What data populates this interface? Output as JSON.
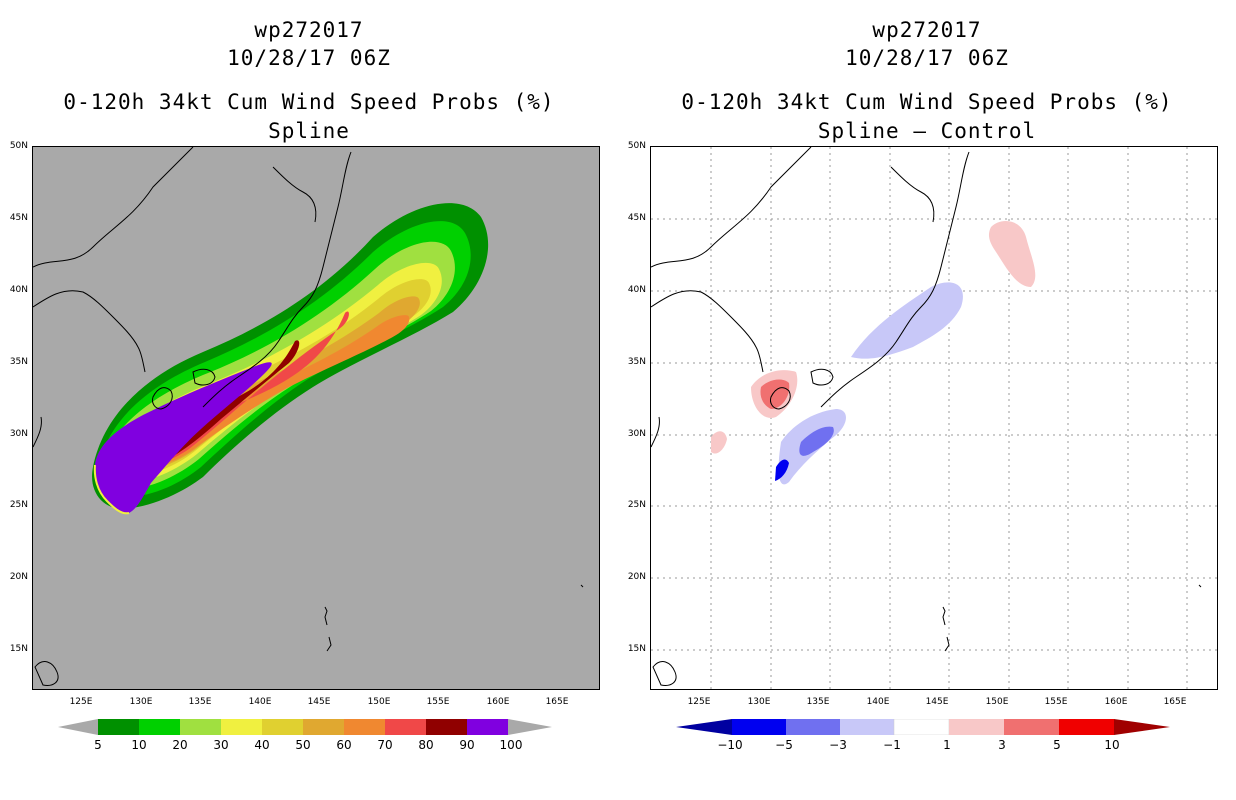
{
  "left_panel": {
    "storm_id": "wp272017",
    "datetime": "10/28/17 06Z",
    "product": "0-120h 34kt Cum Wind Speed Probs (%)",
    "subtitle": "Spline",
    "colorbar": {
      "labels": [
        "5",
        "10",
        "20",
        "30",
        "40",
        "50",
        "60",
        "70",
        "80",
        "90",
        "100"
      ],
      "colors": [
        "#009000",
        "#00d000",
        "#a0e040",
        "#f0f040",
        "#e0d030",
        "#e0a830",
        "#f08830",
        "#f04848",
        "#900000",
        "#8000e0"
      ]
    }
  },
  "right_panel": {
    "storm_id": "wp272017",
    "datetime": "10/28/17 06Z",
    "product": "0-120h 34kt Cum Wind Speed Probs (%)",
    "subtitle": "Spline – Control",
    "colorbar": {
      "labels": [
        "−10",
        "−5",
        "−3",
        "−1",
        "1",
        "3",
        "5",
        "10"
      ],
      "colors": [
        "#0000a0",
        "#0000f0",
        "#7070f0",
        "#c8c8f8",
        "#ffffff",
        "#f8c8c8",
        "#f07070",
        "#f00000",
        "#a00000"
      ]
    }
  },
  "axes": {
    "lat_labels": [
      "50N",
      "45N",
      "40N",
      "35N",
      "30N",
      "25N",
      "20N",
      "15N"
    ],
    "lon_labels": [
      "125E",
      "130E",
      "135E",
      "140E",
      "145E",
      "150E",
      "155E",
      "160E",
      "165E"
    ]
  }
}
